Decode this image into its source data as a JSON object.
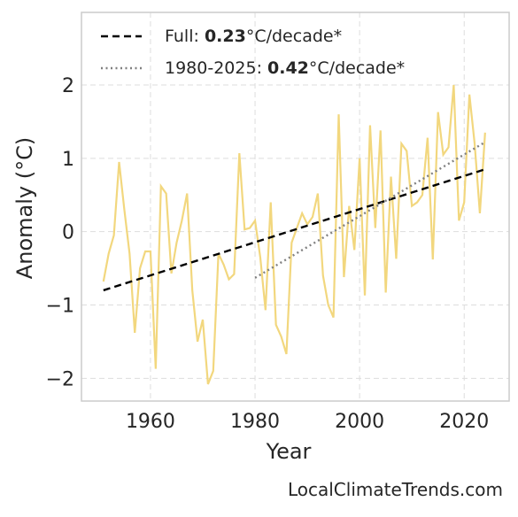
{
  "chart_data": {
    "type": "line",
    "xlabel": "Year",
    "ylabel": "Anomaly (°C)",
    "footer": "LocalClimateTrends.com",
    "xlim": [
      1946.8,
      2028.6
    ],
    "ylim": [
      -2.31,
      2.99
    ],
    "xticks": [
      1960,
      1980,
      2000,
      2020
    ],
    "yticks": [
      {
        "value": -2,
        "label": "−2"
      },
      {
        "value": -1,
        "label": "−1"
      },
      0,
      1,
      2
    ],
    "grid": true,
    "x": [
      1951,
      1952,
      1953,
      1954,
      1955,
      1956,
      1957,
      1958,
      1959,
      1960,
      1961,
      1962,
      1963,
      1964,
      1965,
      1966,
      1967,
      1968,
      1969,
      1970,
      1971,
      1972,
      1973,
      1974,
      1975,
      1976,
      1977,
      1978,
      1979,
      1980,
      1981,
      1982,
      1983,
      1984,
      1985,
      1986,
      1987,
      1988,
      1989,
      1990,
      1991,
      1992,
      1993,
      1994,
      1995,
      1996,
      1997,
      1998,
      1999,
      2000,
      2001,
      2002,
      2003,
      2004,
      2005,
      2006,
      2007,
      2008,
      2009,
      2010,
      2011,
      2012,
      2013,
      2014,
      2015,
      2016,
      2017,
      2018,
      2019,
      2020,
      2021,
      2022,
      2023,
      2024
    ],
    "series": [
      {
        "color": "#f2d77e",
        "style": "solid",
        "values": [
          -0.68,
          -0.3,
          -0.05,
          0.95,
          0.3,
          -0.3,
          -1.38,
          -0.5,
          -0.27,
          -0.27,
          -1.87,
          0.62,
          0.52,
          -0.57,
          -0.15,
          0.15,
          0.52,
          -0.8,
          -1.5,
          -1.2,
          -2.08,
          -1.9,
          -0.3,
          -0.45,
          -0.65,
          -0.58,
          1.07,
          0.03,
          0.05,
          0.15,
          -0.35,
          -1.07,
          0.4,
          -1.27,
          -1.43,
          -1.67,
          -0.15,
          0.05,
          0.25,
          0.1,
          0.2,
          0.52,
          -0.6,
          -1.0,
          -1.17,
          1.6,
          -0.62,
          0.35,
          -0.25,
          1.0,
          -0.87,
          1.45,
          0.05,
          1.38,
          -0.83,
          0.75,
          -0.37,
          1.2,
          1.1,
          0.35,
          0.4,
          0.5,
          1.28,
          -0.38,
          1.63,
          1.05,
          1.15,
          2.0,
          0.15,
          0.4,
          1.87,
          1.2,
          0.25,
          1.35
        ]
      },
      {
        "color": "#000000",
        "style": "dashed",
        "x": [
          1951,
          2024
        ],
        "values": [
          -0.8,
          0.85
        ],
        "label_parts": [
          "Full: ",
          "0.23",
          "°C/decade*"
        ]
      },
      {
        "color": "#808080",
        "style": "dotted",
        "x": [
          1980,
          2024
        ],
        "values": [
          -0.63,
          1.22
        ],
        "label_parts": [
          "1980-2025: ",
          "0.42",
          "°C/decade*"
        ]
      }
    ]
  }
}
